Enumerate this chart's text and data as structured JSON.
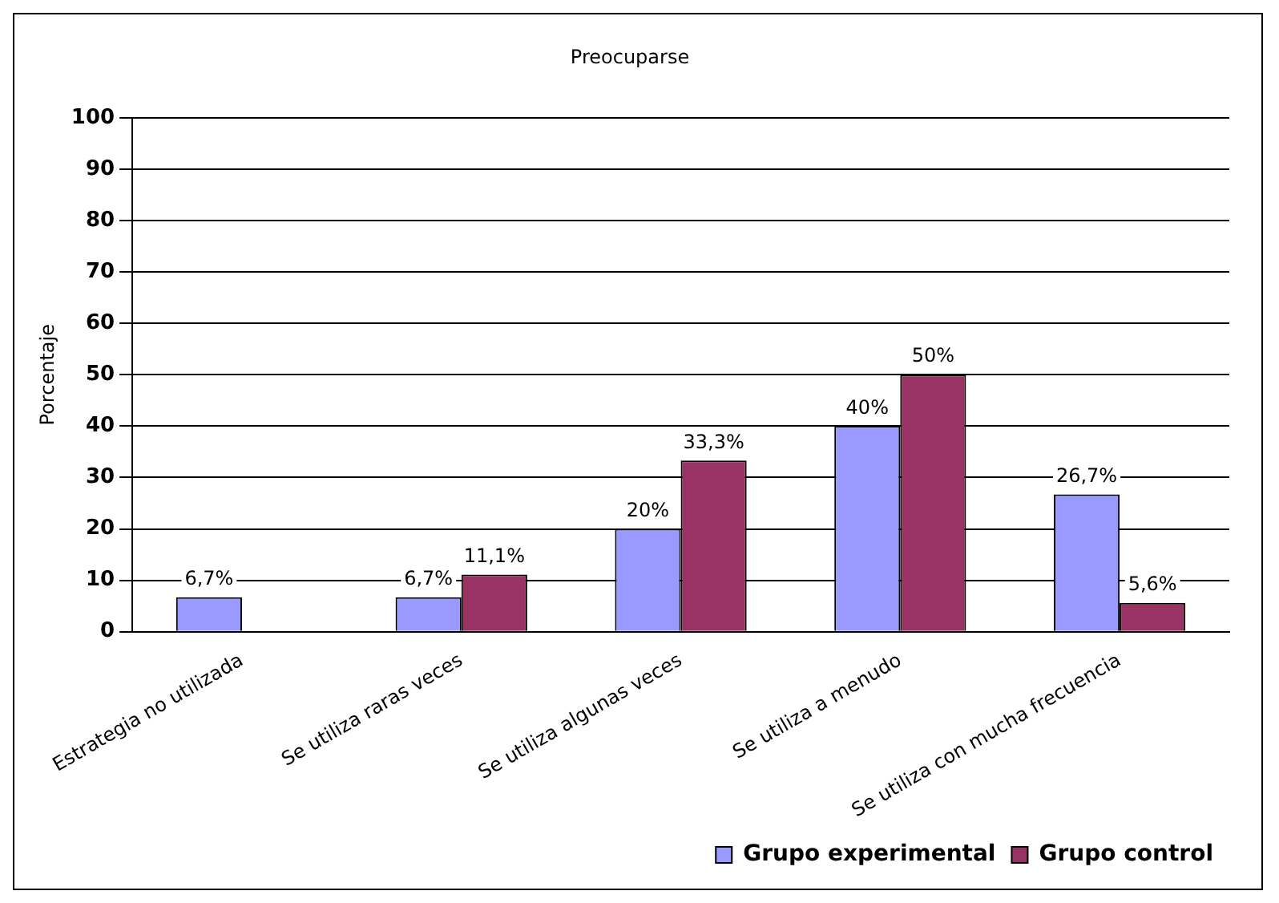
{
  "chart_data": {
    "type": "bar",
    "title": "Preocuparse",
    "ylabel": "Porcentaje",
    "categories": [
      "Estrategia no utilizada",
      "Se utiliza raras veces",
      "Se utiliza algunas veces",
      "Se utiliza a menudo",
      "Se utiliza con mucha frecuencia"
    ],
    "series": [
      {
        "name": "Grupo experimental",
        "color": "#9999ff",
        "values": [
          6.7,
          6.7,
          20,
          40,
          26.7
        ],
        "value_labels": [
          "6,7%",
          "6,7%",
          "20%",
          "40%",
          "26,7%"
        ]
      },
      {
        "name": "Grupo control",
        "color": "#993366",
        "values": [
          0,
          11.1,
          33.3,
          50,
          5.6
        ],
        "value_labels": [
          null,
          "11,1%",
          "33,3%",
          "50%",
          "5,6%"
        ]
      }
    ],
    "ylim": [
      0,
      100
    ],
    "yticks": [
      0,
      10,
      20,
      30,
      40,
      50,
      60,
      70,
      80,
      90,
      100
    ],
    "grid": "y",
    "legend": "bottom right"
  }
}
